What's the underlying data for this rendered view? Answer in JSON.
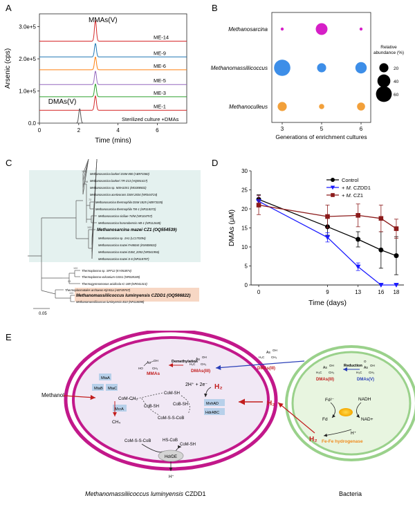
{
  "panels": {
    "A": {
      "letter": "A",
      "ylabel": "Arsenic (cps)",
      "xlabel": "Time (mins)",
      "yticks": [
        "0.0",
        "1.0e+5",
        "2.0e+5",
        "3.0e+5"
      ],
      "xticks": [
        "0",
        "2",
        "4",
        "6"
      ],
      "peak_mmas": "MMAs(V)",
      "peak_dmas": "DMAs(V)",
      "traces": [
        {
          "label": "ME-14",
          "color": "#d62728"
        },
        {
          "label": "ME-9",
          "color": "#1f77b4"
        },
        {
          "label": "ME-6",
          "color": "#ff7f0e"
        },
        {
          "label": "ME-5",
          "color": "#9467bd"
        },
        {
          "label": "ME-3",
          "color": "#2ca02c"
        },
        {
          "label": "ME-1",
          "color": "#d62728"
        },
        {
          "label": "Sterilized culture +DMAs",
          "color": "#555555"
        }
      ]
    },
    "B": {
      "letter": "B",
      "rows": [
        "Methanosarcina",
        "Methanomassiliicoccus",
        "Methanoculleus"
      ],
      "cols": [
        "3",
        "5",
        "6"
      ],
      "xlabel": "Generations of enrichment cultures",
      "legend_title_1": "Relative",
      "legend_title_2": "abundance (%)",
      "legend_sizes": [
        "20",
        "40",
        "60"
      ],
      "colors": {
        "Methanosarcina": "#d61fc7",
        "Methanomassiliicoccus": "#3d8ee8",
        "Methanoculleus": "#f2a03a"
      }
    },
    "C": {
      "letter": "C",
      "scale": "0.05",
      "taxa": [
        "Methanosarcina barkeri DSM 800 (AB973360)",
        "Methanosarcina barkeri TR-Z13 (HQ591417)",
        "Methanosarcina sp. MSH10X1 (MG008502)",
        "Methanosarcina acetivorans DSM 2834 (NR044724)",
        "Methanosarcina thermophila DSM 1825 (AB973335)",
        "Methanosarcina thermophila TM-1 (NR118372)",
        "Methanosarcina siciliae T4/M (NR104757)",
        "Methanosarcina horonobensis HB-1 (NR112648)",
        "Methanosarcina mazei CZ1 (OQ554539)",
        "Methanosarcina sp. 1H1 (LC170394)",
        "Methanosarcina mazei FA8604c (KM408633)",
        "Methanosarcina mazei DSM_2053 (NR041956)",
        "Methanosarcina mazei S-6 (NR118787)",
        "Thermoplasma sp. SFF12 (KY053874)",
        "Thermoplasma volcanium GSS1 (NR028185)",
        "Thermogymnomonas acidicola IC-189 (NR041313)",
        "Thermoplasmatales archaeon Kjm51a (AB749767)",
        "Methanomassiliicoccus luminyensis CZDD1 (OQ566822)",
        "Methanomassiliicoccus luminyensis B10 (NR118098)"
      ],
      "bootstrap": [
        "100",
        "98",
        "72",
        "100",
        "100",
        "93",
        "100"
      ]
    },
    "D": {
      "letter": "D",
      "ylabel": "DMAs (μM)",
      "xlabel": "Time (days)",
      "yticks": [
        "0",
        "5",
        "10",
        "15",
        "20",
        "25",
        "30"
      ],
      "xticks": [
        "0",
        "9",
        "13",
        "16",
        "18"
      ],
      "legend": [
        {
          "text": "Control"
        },
        {
          "prefix": "+ ",
          "italic": "M.",
          "rest": " CZDD1"
        },
        {
          "prefix": "+ ",
          "italic": "M.",
          "rest": " CZ1"
        }
      ]
    },
    "E": {
      "letter": "E",
      "left_caption_italic": "Methanomassiliicoccus luminyensis",
      "left_caption_rest": " CZDD1",
      "right_caption": "Bacteria",
      "methanol": "Methanol",
      "enzymes": [
        "MtaA",
        "MtaB",
        "MtaC",
        "McrA",
        "MvhAD",
        "HdrABC",
        "HdrDE"
      ],
      "labels": {
        "com_ch3": "CoM-CH₃",
        "ch4": "CH₄",
        "com_sh_1": "CoM-SH",
        "cob_sh_1": "CoB-SH",
        "cob_sh_2": "CoB-SH",
        "com_s_s_cob_1": "CoM-S-S-CoB",
        "com_s_s_cob_2": "CoM-S-S-CoB",
        "hs_cob": "HS-CoB",
        "com_sh_2": "CoM-SH",
        "protons": "2H⁺ + 2e⁻",
        "h2_inner": "H₂",
        "h2_between": "H₂",
        "h2_bacteria": "H₂",
        "hplus_out": "H⁺",
        "demethylation": "Demethylation",
        "mmas": "MMAs",
        "dmas_iii_inner": "DMAs(III)",
        "dmas_iii_between": "DMAs(III)",
        "reduction": "Reduction",
        "dmas_iii_bact": "DMAs(III)",
        "dmas_v_bact": "DMAs(V)",
        "fd2": "Fd²⁻",
        "fd": "Fd",
        "nadh": "NADH",
        "nadp": "NAD+",
        "hplus_bact": "H⁺",
        "hydrogenase": "Fe-Fe hydrogenase",
        "as_atom": "As",
        "ho": "HO",
        "oh": "OH",
        "ch3": "CH₃",
        "h3c": "H₃C",
        "o_atom": "O"
      }
    }
  },
  "chart_data": [
    {
      "type": "line",
      "panel": "A",
      "title": "",
      "xlabel": "Time (mins)",
      "ylabel": "Arsenic (cps)",
      "xlim": [
        0,
        7.5
      ],
      "ylim": [
        0,
        340000
      ],
      "series": [
        {
          "name": "ME-14",
          "baseline": 255000,
          "peak_x": 2.85,
          "peak_height": 65000
        },
        {
          "name": "ME-9",
          "baseline": 206000,
          "peak_x": 2.85,
          "peak_height": 42000
        },
        {
          "name": "ME-6",
          "baseline": 166000,
          "peak_x": 2.85,
          "peak_height": 40000
        },
        {
          "name": "ME-5",
          "baseline": 120000,
          "peak_x": 2.85,
          "peak_height": 42000
        },
        {
          "name": "ME-3",
          "baseline": 82000,
          "peak_x": 2.85,
          "peak_height": 40000
        },
        {
          "name": "ME-1",
          "baseline": 40000,
          "peak_x": 2.85,
          "peak_height": 45000
        },
        {
          "name": "Sterilized culture +DMAs",
          "baseline": 0,
          "peak_x": 2.05,
          "peak_height": 45000
        }
      ]
    },
    {
      "type": "scatter",
      "panel": "B",
      "xlabel": "Generations of enrichment cultures",
      "categories_x": [
        "3",
        "5",
        "6"
      ],
      "categories_y": [
        "Methanosarcina",
        "Methanomassiliicoccus",
        "Methanoculleus"
      ],
      "points": [
        {
          "y": "Methanosarcina",
          "x": "3",
          "value": 2
        },
        {
          "y": "Methanosarcina",
          "x": "5",
          "value": 30
        },
        {
          "y": "Methanosarcina",
          "x": "6",
          "value": 1
        },
        {
          "y": "Methanomassiliicoccus",
          "x": "3",
          "value": 58
        },
        {
          "y": "Methanomassiliicoccus",
          "x": "5",
          "value": 18
        },
        {
          "y": "Methanomassiliicoccus",
          "x": "6",
          "value": 28
        },
        {
          "y": "Methanoculleus",
          "x": "3",
          "value": 18
        },
        {
          "y": "Methanoculleus",
          "x": "5",
          "value": 6
        },
        {
          "y": "Methanoculleus",
          "x": "6",
          "value": 14
        }
      ]
    },
    {
      "type": "line",
      "panel": "D",
      "xlabel": "Time (days)",
      "ylabel": "DMAs (μM)",
      "x": [
        0,
        9,
        13,
        16,
        18
      ],
      "ylim": [
        0,
        30
      ],
      "series": [
        {
          "name": "Control",
          "color": "#000000",
          "marker": "circle",
          "values": [
            22.5,
            15.3,
            12.0,
            9.2,
            7.7
          ],
          "errors": [
            1.2,
            2.2,
            2.0,
            4.8,
            5.0
          ]
        },
        {
          "name": "+ M. CZDD1",
          "color": "#1a1aff",
          "marker": "triangle",
          "values": [
            22.0,
            12.5,
            4.8,
            0,
            0
          ],
          "errors": [
            1.5,
            1.2,
            1.0,
            0,
            0
          ]
        },
        {
          "name": "+ M. CZ1",
          "color": "#8b1a1a",
          "marker": "square",
          "values": [
            21.0,
            18.0,
            18.3,
            17.5,
            14.8
          ],
          "errors": [
            2.5,
            3.0,
            3.0,
            3.5,
            2.5
          ]
        }
      ]
    }
  ]
}
